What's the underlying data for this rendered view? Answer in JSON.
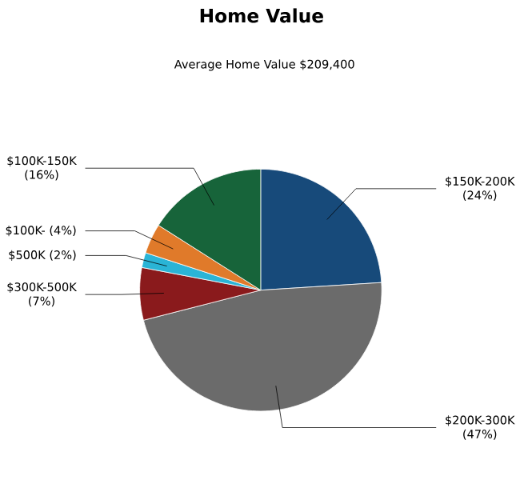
{
  "chart_data": {
    "type": "pie",
    "title": "Home Value",
    "subtitle": "Average Home Value  $209,400",
    "categories": [
      "$150K-200K",
      "$200K-300K",
      "$300K-500K",
      "$500K",
      "$100K-",
      "$100K-150K"
    ],
    "values": [
      24,
      47,
      7,
      2,
      4,
      16
    ],
    "value_labels": [
      "(24%)",
      "(47%)",
      "(7%)",
      "(2%)",
      "(4%)",
      "(16%)"
    ],
    "colors": [
      "#174a7a",
      "#6b6b6b",
      "#8a1a1c",
      "#2ab4d6",
      "#e07a2a",
      "#17643a"
    ]
  }
}
